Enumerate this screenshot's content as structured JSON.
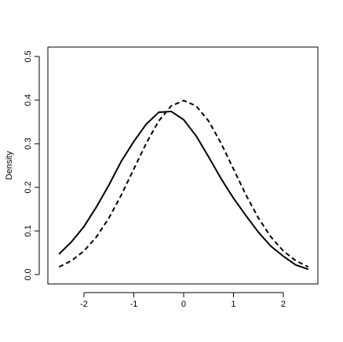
{
  "chart_data": {
    "type": "line",
    "ylabel": "Density",
    "x": [
      -2.5,
      -2.25,
      -2,
      -1.75,
      -1.5,
      -1.25,
      -1,
      -0.75,
      -0.5,
      -0.25,
      0,
      0.25,
      0.5,
      0.75,
      1,
      1.25,
      1.5,
      1.75,
      2,
      2.25,
      2.5
    ],
    "series": [
      {
        "color": "#000000",
        "linestyle": "solid",
        "values": [
          0.047,
          0.075,
          0.11,
          0.155,
          0.205,
          0.26,
          0.305,
          0.345,
          0.372,
          0.374,
          0.355,
          0.318,
          0.27,
          0.22,
          0.175,
          0.135,
          0.097,
          0.065,
          0.042,
          0.022,
          0.012
        ]
      },
      {
        "color": "#000000",
        "linestyle": "dashed",
        "values": [
          0.0175,
          0.0317,
          0.054,
          0.0863,
          0.1295,
          0.1826,
          0.242,
          0.3011,
          0.3521,
          0.3867,
          0.3989,
          0.3867,
          0.3521,
          0.3011,
          0.242,
          0.1826,
          0.1295,
          0.0863,
          0.054,
          0.0317,
          0.0175
        ]
      }
    ],
    "xlim": [
      -2.724,
      2.693
    ],
    "xticks": [
      -2,
      -1,
      0,
      1,
      2
    ],
    "ylim": [
      -0.0216,
      0.5216
    ],
    "yticks": [
      {
        "value": 0,
        "label": "0.0"
      },
      0.1,
      0.2,
      0.3,
      0.4,
      0.5
    ]
  }
}
